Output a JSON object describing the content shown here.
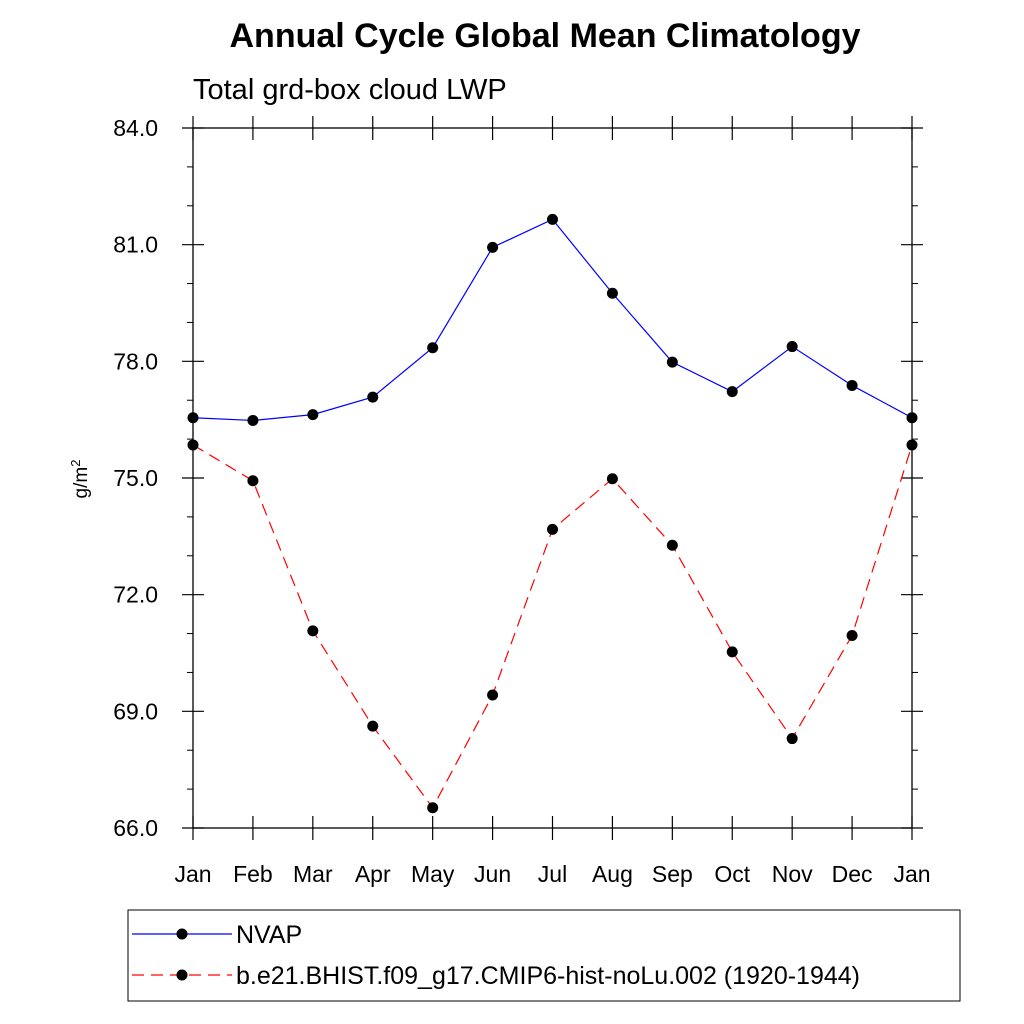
{
  "chart_data": {
    "type": "line",
    "title": "Annual Cycle Global Mean Climatology",
    "subtitle": "Total grd-box cloud LWP",
    "ylabel_base": "g/m",
    "ylabel_sup": "2",
    "xlabel": "",
    "categories": [
      "Jan",
      "Feb",
      "Mar",
      "Apr",
      "May",
      "Jun",
      "Jul",
      "Aug",
      "Sep",
      "Oct",
      "Nov",
      "Dec",
      "Jan"
    ],
    "ylim": [
      66.0,
      84.0
    ],
    "yticks": [
      "66.0",
      "69.0",
      "72.0",
      "75.0",
      "78.0",
      "81.0",
      "84.0"
    ],
    "yticks_values": [
      66,
      69,
      72,
      75,
      78,
      81,
      84
    ],
    "series": [
      {
        "name": "NVAP",
        "color": "#0000ff",
        "dash": "solid",
        "values": [
          76.55,
          76.48,
          76.63,
          77.08,
          78.35,
          80.93,
          81.65,
          79.75,
          77.98,
          77.22,
          78.38,
          77.38,
          76.55
        ]
      },
      {
        "name": "b.e21.BHIST.f09_g17.CMIP6-hist-noLu.002 (1920-1944)",
        "color": "#ff0000",
        "dash": "dashed",
        "values": [
          75.85,
          74.93,
          71.07,
          68.62,
          66.52,
          69.42,
          73.68,
          74.98,
          73.27,
          70.53,
          68.3,
          70.95,
          75.85
        ]
      }
    ],
    "marker_color": "#000000",
    "legend_position": "bottom"
  }
}
